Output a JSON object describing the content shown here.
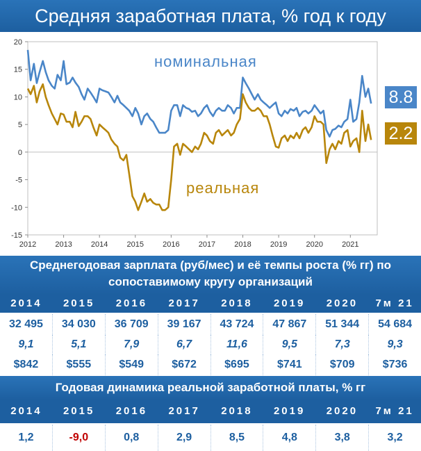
{
  "title": "Средняя заработная плата, % год к году",
  "chart_data": {
    "type": "line",
    "ylim": [
      -15,
      20
    ],
    "yticks": [
      "20",
      "15",
      "10",
      "5",
      "0",
      "-5",
      "-10",
      "-15"
    ],
    "xticks": [
      "2012",
      "2013",
      "2014",
      "2015",
      "2016",
      "2017",
      "2018",
      "2019",
      "2020",
      "2021"
    ],
    "xlim": [
      2012,
      2021.75
    ],
    "series": [
      {
        "name": "номинальная",
        "color": "#4a86c8",
        "last_value": "8.8",
        "x": [
          2012.0,
          2012.08,
          2012.17,
          2012.25,
          2012.33,
          2012.42,
          2012.5,
          2012.58,
          2012.67,
          2012.75,
          2012.83,
          2012.92,
          2013.0,
          2013.08,
          2013.17,
          2013.25,
          2013.33,
          2013.42,
          2013.5,
          2013.58,
          2013.67,
          2013.75,
          2013.83,
          2013.92,
          2014.0,
          2014.08,
          2014.17,
          2014.25,
          2014.33,
          2014.42,
          2014.5,
          2014.58,
          2014.67,
          2014.75,
          2014.83,
          2014.92,
          2015.0,
          2015.08,
          2015.17,
          2015.25,
          2015.33,
          2015.42,
          2015.5,
          2015.58,
          2015.67,
          2015.75,
          2015.83,
          2015.92,
          2016.0,
          2016.08,
          2016.17,
          2016.25,
          2016.33,
          2016.42,
          2016.5,
          2016.58,
          2016.67,
          2016.75,
          2016.83,
          2016.92,
          2017.0,
          2017.08,
          2017.17,
          2017.25,
          2017.33,
          2017.42,
          2017.5,
          2017.58,
          2017.67,
          2017.75,
          2017.83,
          2017.92,
          2018.0,
          2018.08,
          2018.17,
          2018.25,
          2018.33,
          2018.42,
          2018.5,
          2018.58,
          2018.67,
          2018.75,
          2018.83,
          2018.92,
          2019.0,
          2019.08,
          2019.17,
          2019.25,
          2019.33,
          2019.42,
          2019.5,
          2019.58,
          2019.67,
          2019.75,
          2019.83,
          2019.92,
          2020.0,
          2020.08,
          2020.17,
          2020.25,
          2020.33,
          2020.42,
          2020.5,
          2020.58,
          2020.67,
          2020.75,
          2020.83,
          2020.92,
          2021.0,
          2021.08,
          2021.17,
          2021.25,
          2021.33,
          2021.42,
          2021.5,
          2021.58
        ],
        "y": [
          18.5,
          13.0,
          16.0,
          12.5,
          14.5,
          16.5,
          14.5,
          13.0,
          12.0,
          11.5,
          14.0,
          13.0,
          16.5,
          12.3,
          12.6,
          13.5,
          12.6,
          11.8,
          10.5,
          9.5,
          11.5,
          10.8,
          10.0,
          9.0,
          11.5,
          11.2,
          11.0,
          10.8,
          10.0,
          9.0,
          10.2,
          9.0,
          8.5,
          8.0,
          7.5,
          6.5,
          8.0,
          7.0,
          5.0,
          6.5,
          7.0,
          6.0,
          5.5,
          4.5,
          3.5,
          3.5,
          3.5,
          4.0,
          7.5,
          8.5,
          8.5,
          6.5,
          8.5,
          8.0,
          7.8,
          7.3,
          7.5,
          6.5,
          7.0,
          8.0,
          8.5,
          7.3,
          6.5,
          7.5,
          8.0,
          7.5,
          7.5,
          8.5,
          8.0,
          7.0,
          8.0,
          8.0,
          13.5,
          12.5,
          11.5,
          10.5,
          9.5,
          10.5,
          9.5,
          9.0,
          8.5,
          8.0,
          8.5,
          9.0,
          7.0,
          6.5,
          7.5,
          7.0,
          7.8,
          7.5,
          8.0,
          6.5,
          7.3,
          7.5,
          7.0,
          7.5,
          8.5,
          7.8,
          7.0,
          7.5,
          4.0,
          2.8,
          4.0,
          4.2,
          4.8,
          4.5,
          5.5,
          6.0,
          9.5,
          5.5,
          6.0,
          9.0,
          13.8,
          10.0,
          11.5,
          8.8
        ]
      },
      {
        "name": "реальная",
        "color": "#b8860b",
        "last_value": "2.2",
        "x": [
          2012.0,
          2012.08,
          2012.17,
          2012.25,
          2012.33,
          2012.42,
          2012.5,
          2012.58,
          2012.67,
          2012.75,
          2012.83,
          2012.92,
          2013.0,
          2013.08,
          2013.17,
          2013.25,
          2013.33,
          2013.42,
          2013.5,
          2013.58,
          2013.67,
          2013.75,
          2013.83,
          2013.92,
          2014.0,
          2014.08,
          2014.17,
          2014.25,
          2014.33,
          2014.42,
          2014.5,
          2014.58,
          2014.67,
          2014.75,
          2014.83,
          2014.92,
          2015.0,
          2015.08,
          2015.17,
          2015.25,
          2015.33,
          2015.42,
          2015.5,
          2015.58,
          2015.67,
          2015.75,
          2015.83,
          2015.92,
          2016.0,
          2016.08,
          2016.17,
          2016.25,
          2016.33,
          2016.42,
          2016.5,
          2016.58,
          2016.67,
          2016.75,
          2016.83,
          2016.92,
          2017.0,
          2017.08,
          2017.17,
          2017.25,
          2017.33,
          2017.42,
          2017.5,
          2017.58,
          2017.67,
          2017.75,
          2017.83,
          2017.92,
          2018.0,
          2018.08,
          2018.17,
          2018.25,
          2018.33,
          2018.42,
          2018.5,
          2018.58,
          2018.67,
          2018.75,
          2018.83,
          2018.92,
          2019.0,
          2019.08,
          2019.17,
          2019.25,
          2019.33,
          2019.42,
          2019.5,
          2019.58,
          2019.67,
          2019.75,
          2019.83,
          2019.92,
          2020.0,
          2020.08,
          2020.17,
          2020.25,
          2020.33,
          2020.42,
          2020.5,
          2020.58,
          2020.67,
          2020.75,
          2020.83,
          2020.92,
          2021.0,
          2021.08,
          2021.17,
          2021.25,
          2021.33,
          2021.42,
          2021.5,
          2021.58
        ],
        "y": [
          11.5,
          10.5,
          12.0,
          9.0,
          11.0,
          12.3,
          10.0,
          8.5,
          7.0,
          6.0,
          5.0,
          7.0,
          6.8,
          5.5,
          5.5,
          4.5,
          7.3,
          4.7,
          5.5,
          6.5,
          6.5,
          6.0,
          4.5,
          3.0,
          5.0,
          4.5,
          4.0,
          3.5,
          2.3,
          1.5,
          1.0,
          -1.0,
          -1.5,
          -0.5,
          -4.0,
          -8.0,
          -9.0,
          -10.5,
          -9.0,
          -7.5,
          -9.0,
          -8.5,
          -9.2,
          -9.5,
          -9.5,
          -10.5,
          -10.5,
          -10.0,
          -5.0,
          1.0,
          1.5,
          -0.5,
          1.5,
          1.0,
          0.5,
          0.0,
          1.0,
          0.5,
          1.5,
          3.5,
          3.0,
          2.0,
          1.5,
          3.5,
          4.0,
          3.0,
          3.5,
          4.0,
          3.0,
          3.5,
          5.0,
          6.0,
          10.5,
          9.0,
          8.0,
          7.5,
          7.5,
          8.0,
          7.5,
          6.5,
          6.5,
          5.0,
          3.0,
          1.0,
          0.8,
          2.5,
          3.0,
          2.0,
          3.0,
          2.5,
          3.5,
          2.5,
          4.0,
          4.5,
          3.5,
          4.5,
          6.5,
          5.5,
          5.5,
          5.0,
          -2.0,
          0.5,
          1.5,
          0.5,
          2.0,
          1.5,
          3.5,
          4.0,
          1.0,
          2.0,
          2.5,
          0.0,
          7.5,
          2.0,
          5.0,
          2.2
        ]
      }
    ]
  },
  "table1": {
    "title_line1": "Среднегодовая зарплата (руб/мес) и её темпы роста (% гг)  по",
    "title_line2": "сопоставимому кругу организаций",
    "years": [
      "2014",
      "2015",
      "2016",
      "2017",
      "2018",
      "2019",
      "2020",
      "7м 21"
    ],
    "salary": [
      "32 495",
      "34 030",
      "36 709",
      "39 167",
      "43 724",
      "47 867",
      "51 344",
      "54 684"
    ],
    "growth": [
      "9,1",
      "5,1",
      "7,9",
      "6,7",
      "11,6",
      "9,5",
      "7,3",
      "9,3"
    ],
    "usd": [
      "$842",
      "$555",
      "$549",
      "$672",
      "$695",
      "$741",
      "$709",
      "$736"
    ]
  },
  "table2": {
    "title": "Годовая динамика реальной заработной платы, % гг",
    "years": [
      "2014",
      "2015",
      "2016",
      "2017",
      "2018",
      "2019",
      "2020",
      "7м 21"
    ],
    "values": [
      "1,2",
      "-9,0",
      "0,8",
      "2,9",
      "8,5",
      "4,8",
      "3,8",
      "3,2"
    ]
  }
}
